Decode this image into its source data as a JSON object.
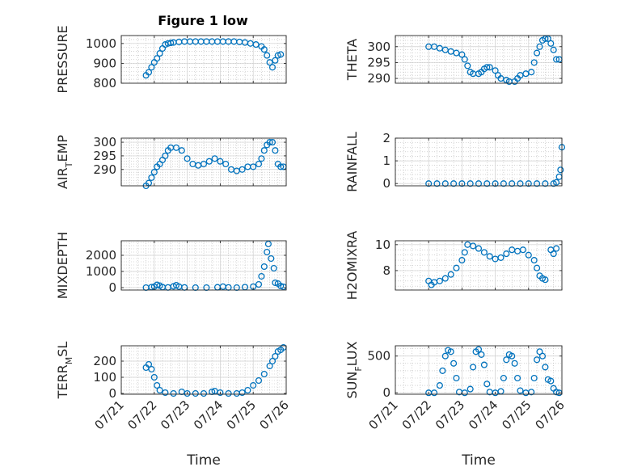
{
  "figure": {
    "title": "Figure 1 low"
  },
  "colors": {
    "marker": "#0072BD",
    "axes": "#262626",
    "grid": "#b8b8b8"
  },
  "chart_data": [
    {
      "type": "scatter",
      "title": "Figure 1 low",
      "xlabel": "",
      "ylabel": "PRESSURE",
      "ylabel_sub": "",
      "ylim": [
        800,
        1040
      ],
      "yticks": [
        800,
        900,
        1000
      ],
      "xlim": [
        "07/21",
        "07/26"
      ],
      "grid": true,
      "xtick_labels": [
        "07/21",
        "07/22",
        "07/23",
        "07/24",
        "07/25",
        "07/26"
      ],
      "show_xticklabels": false,
      "points": [
        [
          "07/21 18:00",
          840
        ],
        [
          "07/21 20:00",
          855
        ],
        [
          "07/21 22:00",
          880
        ],
        [
          "07/22 00:00",
          905
        ],
        [
          "07/22 02:00",
          925
        ],
        [
          "07/22 04:00",
          950
        ],
        [
          "07/22 06:00",
          975
        ],
        [
          "07/22 08:00",
          995
        ],
        [
          "07/22 10:00",
          1000
        ],
        [
          "07/22 12:00",
          1003
        ],
        [
          "07/22 14:00",
          1005
        ],
        [
          "07/22 18:00",
          1008
        ],
        [
          "07/22 22:00",
          1010
        ],
        [
          "07/23 02:00",
          1010
        ],
        [
          "07/23 06:00",
          1010
        ],
        [
          "07/23 10:00",
          1010
        ],
        [
          "07/23 14:00",
          1010
        ],
        [
          "07/23 18:00",
          1010
        ],
        [
          "07/23 22:00",
          1010
        ],
        [
          "07/24 02:00",
          1010
        ],
        [
          "07/24 06:00",
          1010
        ],
        [
          "07/24 10:00",
          1010
        ],
        [
          "07/24 14:00",
          1008
        ],
        [
          "07/24 18:00",
          1005
        ],
        [
          "07/24 22:00",
          1000
        ],
        [
          "07/25 02:00",
          995
        ],
        [
          "07/25 06:00",
          985
        ],
        [
          "07/25 08:00",
          970
        ],
        [
          "07/25 10:00",
          940
        ],
        [
          "07/25 12:00",
          905
        ],
        [
          "07/25 14:00",
          880
        ],
        [
          "07/25 16:00",
          915
        ],
        [
          "07/25 18:00",
          940
        ],
        [
          "07/25 20:00",
          945
        ]
      ]
    },
    {
      "type": "scatter",
      "title": "",
      "xlabel": "",
      "ylabel": "THETA",
      "ylabel_sub": "",
      "ylim": [
        288.5,
        303.5
      ],
      "yticks": [
        290,
        295,
        300
      ],
      "xlim": [
        "07/21",
        "07/26"
      ],
      "grid": true,
      "xtick_labels": [
        "07/21",
        "07/22",
        "07/23",
        "07/24",
        "07/25",
        "07/26"
      ],
      "show_xticklabels": false,
      "points": [
        [
          "07/22 00:00",
          300
        ],
        [
          "07/22 04:00",
          300
        ],
        [
          "07/22 08:00",
          299.5
        ],
        [
          "07/22 12:00",
          299
        ],
        [
          "07/22 16:00",
          298.5
        ],
        [
          "07/22 20:00",
          298
        ],
        [
          "07/23 00:00",
          297.5
        ],
        [
          "07/23 02:00",
          296
        ],
        [
          "07/23 04:00",
          294
        ],
        [
          "07/23 06:00",
          292
        ],
        [
          "07/23 08:00",
          291.5
        ],
        [
          "07/23 12:00",
          291.5
        ],
        [
          "07/23 14:00",
          292
        ],
        [
          "07/23 16:00",
          293
        ],
        [
          "07/23 18:00",
          293.5
        ],
        [
          "07/23 20:00",
          293.5
        ],
        [
          "07/24 00:00",
          292.5
        ],
        [
          "07/24 02:00",
          291
        ],
        [
          "07/24 04:00",
          290
        ],
        [
          "07/24 08:00",
          289.5
        ],
        [
          "07/24 10:00",
          289
        ],
        [
          "07/24 14:00",
          289
        ],
        [
          "07/24 16:00",
          290
        ],
        [
          "07/24 18:00",
          291
        ],
        [
          "07/24 22:00",
          291.5
        ],
        [
          "07/25 02:00",
          292
        ],
        [
          "07/25 04:00",
          295
        ],
        [
          "07/25 06:00",
          298
        ],
        [
          "07/25 08:00",
          300
        ],
        [
          "07/25 10:00",
          302
        ],
        [
          "07/25 12:00",
          302.5
        ],
        [
          "07/25 14:00",
          302.5
        ],
        [
          "07/25 16:00",
          301
        ],
        [
          "07/25 18:00",
          299
        ],
        [
          "07/25 20:00",
          296
        ],
        [
          "07/25 22:00",
          296
        ]
      ]
    },
    {
      "type": "scatter",
      "title": "",
      "xlabel": "",
      "ylabel": "AIR",
      "ylabel_sub": "T",
      "ylabel_suffix": "EMP",
      "ylim": [
        284,
        301.5
      ],
      "yticks": [
        290,
        295,
        300
      ],
      "xlim": [
        "07/21",
        "07/26"
      ],
      "grid": true,
      "xtick_labels": [
        "07/21",
        "07/22",
        "07/23",
        "07/24",
        "07/25",
        "07/26"
      ],
      "show_xticklabels": false,
      "points": [
        [
          "07/21 18:00",
          284
        ],
        [
          "07/21 20:00",
          285
        ],
        [
          "07/21 22:00",
          287
        ],
        [
          "07/22 00:00",
          289
        ],
        [
          "07/22 02:00",
          291
        ],
        [
          "07/22 04:00",
          292
        ],
        [
          "07/22 06:00",
          293.5
        ],
        [
          "07/22 08:00",
          295
        ],
        [
          "07/22 10:00",
          297
        ],
        [
          "07/22 12:00",
          298
        ],
        [
          "07/22 16:00",
          298
        ],
        [
          "07/22 20:00",
          297
        ],
        [
          "07/23 00:00",
          294
        ],
        [
          "07/23 04:00",
          292
        ],
        [
          "07/23 08:00",
          291.5
        ],
        [
          "07/23 12:00",
          292
        ],
        [
          "07/23 16:00",
          293
        ],
        [
          "07/23 20:00",
          294
        ],
        [
          "07/24 00:00",
          293
        ],
        [
          "07/24 04:00",
          292
        ],
        [
          "07/24 08:00",
          290
        ],
        [
          "07/24 12:00",
          289.5
        ],
        [
          "07/24 16:00",
          290
        ],
        [
          "07/24 20:00",
          291
        ],
        [
          "07/25 00:00",
          291
        ],
        [
          "07/25 04:00",
          292
        ],
        [
          "07/25 06:00",
          294
        ],
        [
          "07/25 08:00",
          297
        ],
        [
          "07/25 10:00",
          299
        ],
        [
          "07/25 12:00",
          300
        ],
        [
          "07/25 14:00",
          300
        ],
        [
          "07/25 16:00",
          297
        ],
        [
          "07/25 18:00",
          292
        ],
        [
          "07/25 20:00",
          291
        ],
        [
          "07/25 22:00",
          291
        ]
      ]
    },
    {
      "type": "scatter",
      "title": "",
      "xlabel": "",
      "ylabel": "RAINFALL",
      "ylabel_sub": "",
      "ylim": [
        -0.1,
        2
      ],
      "yticks": [
        0,
        1,
        2
      ],
      "xlim": [
        "07/21",
        "07/26"
      ],
      "grid": true,
      "xtick_labels": [
        "07/21",
        "07/22",
        "07/23",
        "07/24",
        "07/25",
        "07/26"
      ],
      "show_xticklabels": false,
      "points": [
        [
          "07/22 00:00",
          0
        ],
        [
          "07/22 06:00",
          0
        ],
        [
          "07/22 12:00",
          0
        ],
        [
          "07/22 18:00",
          0
        ],
        [
          "07/23 00:00",
          0
        ],
        [
          "07/23 06:00",
          0
        ],
        [
          "07/23 12:00",
          0
        ],
        [
          "07/23 18:00",
          0
        ],
        [
          "07/24 00:00",
          0
        ],
        [
          "07/24 06:00",
          0
        ],
        [
          "07/24 12:00",
          0
        ],
        [
          "07/24 18:00",
          0
        ],
        [
          "07/25 00:00",
          0
        ],
        [
          "07/25 06:00",
          0
        ],
        [
          "07/25 12:00",
          0
        ],
        [
          "07/25 18:00",
          0
        ],
        [
          "07/25 20:00",
          0.05
        ],
        [
          "07/25 22:00",
          0.3
        ],
        [
          "07/25 23:00",
          0.6
        ],
        [
          "07/26 00:00",
          1.6
        ]
      ]
    },
    {
      "type": "scatter",
      "title": "",
      "xlabel": "",
      "ylabel": "MIXDEPTH",
      "ylabel_sub": "",
      "ylim": [
        -150,
        2900
      ],
      "yticks": [
        0,
        1000,
        2000
      ],
      "xlim": [
        "07/21",
        "07/26"
      ],
      "grid": true,
      "xtick_labels": [
        "07/21",
        "07/22",
        "07/23",
        "07/24",
        "07/25",
        "07/26"
      ],
      "show_xticklabels": false,
      "points": [
        [
          "07/21 18:00",
          0
        ],
        [
          "07/21 22:00",
          30
        ],
        [
          "07/22 00:00",
          60
        ],
        [
          "07/22 02:00",
          170
        ],
        [
          "07/22 04:00",
          120
        ],
        [
          "07/22 06:00",
          30
        ],
        [
          "07/22 10:00",
          10
        ],
        [
          "07/22 14:00",
          80
        ],
        [
          "07/22 16:00",
          150
        ],
        [
          "07/22 18:00",
          60
        ],
        [
          "07/22 22:00",
          10
        ],
        [
          "07/23 06:00",
          0
        ],
        [
          "07/23 14:00",
          0
        ],
        [
          "07/23 22:00",
          20
        ],
        [
          "07/24 02:00",
          60
        ],
        [
          "07/24 06:00",
          10
        ],
        [
          "07/24 12:00",
          0
        ],
        [
          "07/24 18:00",
          30
        ],
        [
          "07/25 00:00",
          60
        ],
        [
          "07/25 04:00",
          200
        ],
        [
          "07/25 06:00",
          700
        ],
        [
          "07/25 08:00",
          1300
        ],
        [
          "07/25 10:00",
          2200
        ],
        [
          "07/25 11:00",
          2700
        ],
        [
          "07/25 13:00",
          1800
        ],
        [
          "07/25 15:00",
          1200
        ],
        [
          "07/25 16:00",
          300
        ],
        [
          "07/25 18:00",
          250
        ],
        [
          "07/25 20:00",
          100
        ],
        [
          "07/25 22:00",
          50
        ]
      ]
    },
    {
      "type": "scatter",
      "title": "",
      "xlabel": "",
      "ylabel": "H2OMIXRA",
      "ylabel_sub": "",
      "ylim": [
        6.5,
        10.3
      ],
      "yticks": [
        8,
        10
      ],
      "xlim": [
        "07/21",
        "07/26"
      ],
      "grid": true,
      "xtick_labels": [
        "07/21",
        "07/22",
        "07/23",
        "07/24",
        "07/25",
        "07/26"
      ],
      "show_xticklabels": false,
      "points": [
        [
          "07/22 00:00",
          7.2
        ],
        [
          "07/22 02:00",
          6.9
        ],
        [
          "07/22 04:00",
          7.1
        ],
        [
          "07/22 08:00",
          7.2
        ],
        [
          "07/22 12:00",
          7.4
        ],
        [
          "07/22 16:00",
          7.7
        ],
        [
          "07/22 20:00",
          8.2
        ],
        [
          "07/23 00:00",
          8.8
        ],
        [
          "07/23 02:00",
          9.4
        ],
        [
          "07/23 04:00",
          10
        ],
        [
          "07/23 08:00",
          9.9
        ],
        [
          "07/23 12:00",
          9.7
        ],
        [
          "07/23 16:00",
          9.4
        ],
        [
          "07/23 20:00",
          9.1
        ],
        [
          "07/24 00:00",
          8.9
        ],
        [
          "07/24 04:00",
          9.0
        ],
        [
          "07/24 08:00",
          9.3
        ],
        [
          "07/24 12:00",
          9.6
        ],
        [
          "07/24 16:00",
          9.5
        ],
        [
          "07/24 20:00",
          9.6
        ],
        [
          "07/25 00:00",
          9.2
        ],
        [
          "07/25 04:00",
          8.8
        ],
        [
          "07/25 06:00",
          8.2
        ],
        [
          "07/25 08:00",
          7.6
        ],
        [
          "07/25 10:00",
          7.4
        ],
        [
          "07/25 12:00",
          7.3
        ],
        [
          "07/25 16:00",
          9.6
        ],
        [
          "07/25 18:00",
          9.3
        ],
        [
          "07/25 20:00",
          9.7
        ]
      ]
    },
    {
      "type": "scatter",
      "title": "",
      "xlabel": "Time",
      "ylabel": "TERR",
      "ylabel_sub": "M",
      "ylabel_suffix": "SL",
      "ylim": [
        -5,
        295
      ],
      "yticks": [
        0,
        100,
        200
      ],
      "xlim": [
        "07/21",
        "07/26"
      ],
      "grid": true,
      "xtick_labels": [
        "07/21",
        "07/22",
        "07/23",
        "07/24",
        "07/25",
        "07/26"
      ],
      "show_xticklabels": true,
      "points": [
        [
          "07/21 18:00",
          160
        ],
        [
          "07/21 20:00",
          180
        ],
        [
          "07/21 22:00",
          150
        ],
        [
          "07/22 00:00",
          100
        ],
        [
          "07/22 02:00",
          50
        ],
        [
          "07/22 04:00",
          20
        ],
        [
          "07/22 08:00",
          5
        ],
        [
          "07/22 14:00",
          0
        ],
        [
          "07/22 20:00",
          10
        ],
        [
          "07/23 00:00",
          0
        ],
        [
          "07/23 06:00",
          0
        ],
        [
          "07/23 12:00",
          0
        ],
        [
          "07/23 18:00",
          10
        ],
        [
          "07/23 20:00",
          15
        ],
        [
          "07/24 00:00",
          5
        ],
        [
          "07/24 06:00",
          0
        ],
        [
          "07/24 12:00",
          0
        ],
        [
          "07/24 16:00",
          5
        ],
        [
          "07/24 20:00",
          20
        ],
        [
          "07/25 00:00",
          50
        ],
        [
          "07/25 04:00",
          80
        ],
        [
          "07/25 08:00",
          120
        ],
        [
          "07/25 12:00",
          170
        ],
        [
          "07/25 14:00",
          200
        ],
        [
          "07/25 16:00",
          230
        ],
        [
          "07/25 18:00",
          260
        ],
        [
          "07/25 20:00",
          270
        ],
        [
          "07/25 22:00",
          285
        ]
      ]
    },
    {
      "type": "scatter",
      "title": "",
      "xlabel": "Time",
      "ylabel": "SUN",
      "ylabel_sub": "F",
      "ylabel_suffix": "LUX",
      "ylim": [
        -20,
        640
      ],
      "yticks": [
        0,
        500
      ],
      "xlim": [
        "07/21",
        "07/26"
      ],
      "grid": true,
      "xtick_labels": [
        "07/21",
        "07/22",
        "07/23",
        "07/24",
        "07/25",
        "07/26"
      ],
      "show_xticklabels": true,
      "points": [
        [
          "07/22 00:00",
          0
        ],
        [
          "07/22 04:00",
          0
        ],
        [
          "07/22 08:00",
          100
        ],
        [
          "07/22 10:00",
          300
        ],
        [
          "07/22 12:00",
          500
        ],
        [
          "07/22 14:00",
          580
        ],
        [
          "07/22 16:00",
          560
        ],
        [
          "07/22 18:00",
          400
        ],
        [
          "07/22 20:00",
          200
        ],
        [
          "07/22 22:00",
          10
        ],
        [
          "07/23 02:00",
          0
        ],
        [
          "07/23 06:00",
          50
        ],
        [
          "07/23 08:00",
          350
        ],
        [
          "07/23 10:00",
          560
        ],
        [
          "07/23 12:00",
          590
        ],
        [
          "07/23 14:00",
          520
        ],
        [
          "07/23 16:00",
          380
        ],
        [
          "07/23 18:00",
          120
        ],
        [
          "07/23 20:00",
          10
        ],
        [
          "07/24 00:00",
          0
        ],
        [
          "07/24 04:00",
          20
        ],
        [
          "07/24 06:00",
          200
        ],
        [
          "07/24 08:00",
          450
        ],
        [
          "07/24 10:00",
          520
        ],
        [
          "07/24 12:00",
          500
        ],
        [
          "07/24 14:00",
          400
        ],
        [
          "07/24 16:00",
          200
        ],
        [
          "07/24 18:00",
          30
        ],
        [
          "07/24 22:00",
          0
        ],
        [
          "07/25 02:00",
          10
        ],
        [
          "07/25 04:00",
          200
        ],
        [
          "07/25 06:00",
          450
        ],
        [
          "07/25 08:00",
          560
        ],
        [
          "07/25 10:00",
          500
        ],
        [
          "07/25 12:00",
          350
        ],
        [
          "07/25 14:00",
          180
        ],
        [
          "07/25 16:00",
          160
        ],
        [
          "07/25 18:00",
          60
        ],
        [
          "07/25 20:00",
          10
        ],
        [
          "07/25 22:00",
          0
        ]
      ]
    }
  ]
}
